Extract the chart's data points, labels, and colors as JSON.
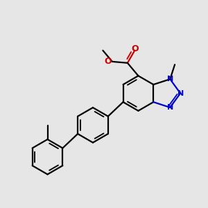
{
  "background_color": "#e6e6e6",
  "bond_color": "#000000",
  "nitrogen_color": "#0000cc",
  "oxygen_color": "#cc0000",
  "line_width": 1.6,
  "figsize": [
    3.0,
    3.0
  ],
  "dpi": 100,
  "xlim": [
    -1.8,
    3.2
  ],
  "ylim": [
    -3.2,
    2.4
  ]
}
